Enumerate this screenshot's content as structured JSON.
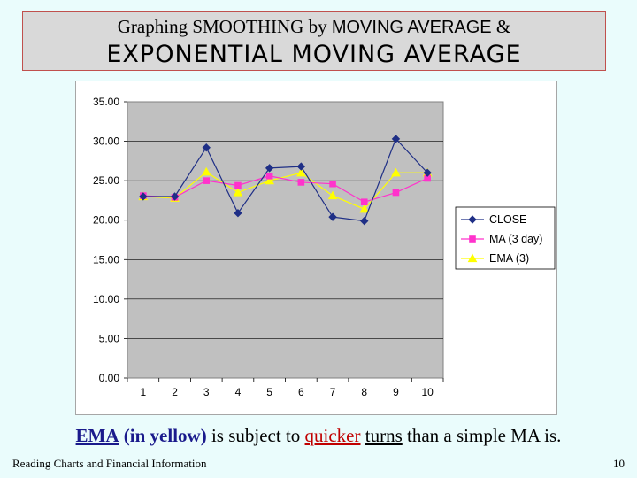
{
  "header": {
    "title_a": "Graphing SMOOTHING by ",
    "title_b": "MOVING AVERAGE",
    "title_c": " &",
    "title_line2": "EXPONENTIAL MOVING AVERAGE"
  },
  "caption": {
    "ema": "EMA",
    "in_yellow": "(in yellow)",
    "part1": " is subject to ",
    "quicker": "quicker",
    "space": " ",
    "turns": "turns",
    "part2": " than a simple MA is."
  },
  "footer": {
    "left": "Reading Charts and Financial Information",
    "page_number": "10"
  },
  "chart_data": {
    "type": "line",
    "categories": [
      "1",
      "2",
      "3",
      "4",
      "5",
      "6",
      "7",
      "8",
      "9",
      "10"
    ],
    "ylim": [
      0,
      35
    ],
    "yticks": [
      "0.00",
      "5.00",
      "10.00",
      "15.00",
      "20.00",
      "25.00",
      "30.00",
      "35.00"
    ],
    "grid": true,
    "legend": "right",
    "series": [
      {
        "name": "CLOSE",
        "color": "#1f2f86",
        "marker": "diamond",
        "values": [
          23.0,
          23.0,
          29.2,
          20.9,
          26.6,
          26.8,
          20.4,
          19.9,
          30.3,
          26.0
        ]
      },
      {
        "name": "MA (3 day)",
        "color": "#ff33cc",
        "marker": "square",
        "values": [
          23.1,
          22.9,
          25.0,
          24.4,
          25.6,
          24.8,
          24.6,
          22.3,
          23.5,
          25.3
        ]
      },
      {
        "name": "EMA (3)",
        "color": "#ffff00",
        "marker": "triangle",
        "values": [
          23.0,
          22.8,
          26.1,
          23.5,
          25.0,
          26.0,
          23.1,
          21.4,
          26.0,
          26.0
        ]
      }
    ]
  }
}
